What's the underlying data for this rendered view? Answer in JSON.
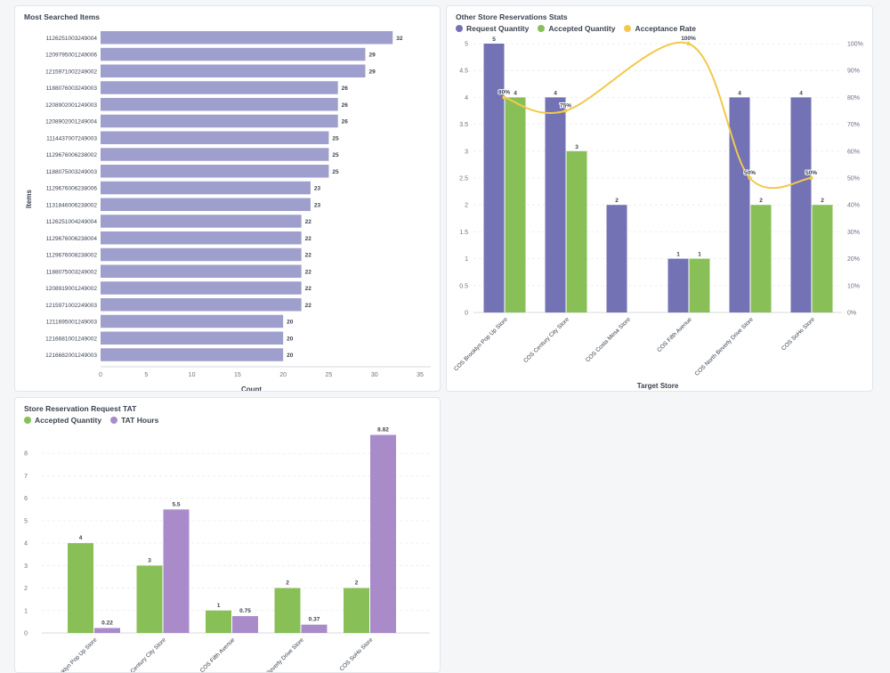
{
  "colors": {
    "purple": "#7372b5",
    "bar_light": "#9e9fcc",
    "green": "#88c057",
    "lavender": "#a98bca",
    "yellow": "#f2c94c",
    "text": "#3b4451",
    "axis": "#6b7280",
    "grid": "#e9ecef"
  },
  "charts": {
    "searched": {
      "title": "Most Searched Items",
      "chart_data": {
        "type": "bar",
        "orientation": "horizontal",
        "title": "Most Searched Items",
        "xlabel": "Count",
        "ylabel": "Items",
        "xlim": [
          0,
          35
        ],
        "xticks": [
          "0",
          "5",
          "10",
          "15",
          "20",
          "25",
          "30",
          "35"
        ],
        "categories": [
          "1126251003249004",
          "1209795001249006",
          "1215971002249002",
          "1188076003249003",
          "1208902001249003",
          "1208902001249004",
          "1114437007249003",
          "1129676006238002",
          "1188075003249003",
          "1129676006238006",
          "1131846006238002",
          "1126251004249004",
          "1129676006238004",
          "1129676008238002",
          "1188075003249002",
          "1208919001249002",
          "1215971002249003",
          "1211695001249003",
          "1216681001249002",
          "1216682001249003"
        ],
        "values": [
          32,
          29,
          29,
          26,
          26,
          26,
          25,
          25,
          25,
          23,
          23,
          22,
          22,
          22,
          22,
          22,
          22,
          20,
          20,
          20
        ]
      }
    },
    "reservations": {
      "title": "Other Store Reservations Stats",
      "chart_data": {
        "type": "bar",
        "title": "Other Store Reservations Stats",
        "xlabel": "Target Store",
        "ylim": [
          0,
          5
        ],
        "yticks": [
          "0",
          "0.5",
          "1",
          "1.5",
          "2",
          "2.5",
          "3",
          "3.5",
          "4",
          "4.5",
          "5"
        ],
        "y2lim": [
          0,
          100
        ],
        "y2ticks": [
          "0%",
          "10%",
          "20%",
          "30%",
          "40%",
          "50%",
          "60%",
          "70%",
          "80%",
          "90%",
          "100%"
        ],
        "legend_position": "top-left",
        "categories": [
          "COS Brooklyn Pop Up Store",
          "COS Century City Store",
          "COS Costa Mesa Store",
          "COS Fifth Avenue",
          "COS North Beverly Drive Store",
          "COS SoHo Store"
        ],
        "series": [
          {
            "name": "Request Quantity",
            "type": "bar",
            "values": [
              5,
              4,
              2,
              1,
              4,
              4
            ],
            "labels": [
              "5",
              "4",
              "2",
              "1",
              "4",
              "4"
            ]
          },
          {
            "name": "Accepted Quantity",
            "type": "bar",
            "values": [
              4,
              3,
              null,
              1,
              2,
              2
            ],
            "labels": [
              "4",
              "3",
              "",
              "1",
              "2",
              "2"
            ]
          },
          {
            "name": "Acceptance Rate",
            "type": "line",
            "axis": "right",
            "values": [
              80,
              75,
              null,
              100,
              50,
              50
            ],
            "labels": [
              "80%",
              "75%",
              "",
              "100%",
              "50%",
              "50%"
            ]
          }
        ]
      }
    },
    "tat": {
      "title": "Store Reservation Request TAT",
      "chart_data": {
        "type": "bar",
        "title": "Store Reservation Request TAT",
        "ylim": [
          0,
          9
        ],
        "yticks": [
          "0",
          "1",
          "2",
          "3",
          "4",
          "5",
          "6",
          "7",
          "8"
        ],
        "legend_position": "top-left",
        "categories": [
          "COS Brooklyn Pop Up Store",
          "COS Century City Store",
          "COS Fifth Avenue",
          "COS North Beverly Drive Store",
          "COS SoHo Store"
        ],
        "series": [
          {
            "name": "Accepted Quantity",
            "values": [
              4,
              3,
              1,
              2,
              2
            ],
            "labels": [
              "4",
              "3",
              "1",
              "2",
              "2"
            ]
          },
          {
            "name": "TAT Hours",
            "values": [
              0.22,
              5.5,
              0.75,
              0.37,
              8.82
            ],
            "labels": [
              "0.22",
              "5.5",
              "0.75",
              "0.37",
              "8.82"
            ]
          }
        ]
      }
    }
  }
}
